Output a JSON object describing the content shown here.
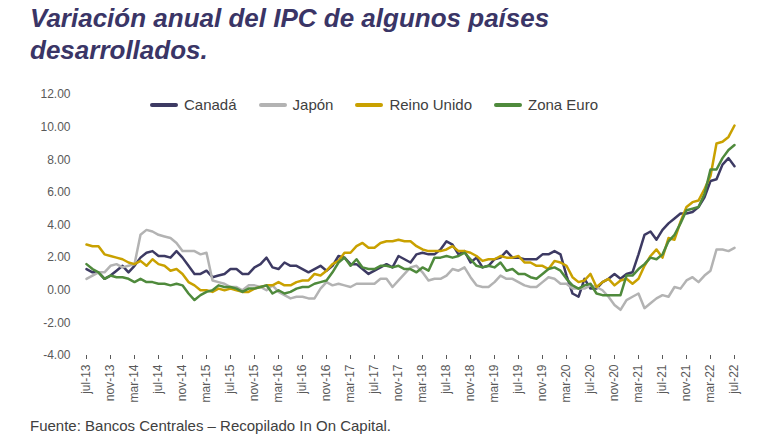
{
  "chart_data": {
    "type": "line",
    "title": "Variación anual del IPC de algunos países desarrollados.",
    "caption": "Fuente: Bancos Centrales – Recopilado In On Capital.",
    "categories": [
      "jul-13",
      null,
      null,
      null,
      "nov-13",
      null,
      null,
      null,
      "mar-14",
      null,
      null,
      null,
      "jul-14",
      null,
      null,
      null,
      "nov-14",
      null,
      null,
      null,
      "mar-15",
      null,
      null,
      null,
      "jul-15",
      null,
      null,
      null,
      "nov-15",
      null,
      null,
      null,
      "mar-16",
      null,
      null,
      null,
      "jul-16",
      null,
      null,
      null,
      "nov-16",
      null,
      null,
      null,
      "mar-17",
      null,
      null,
      null,
      "jul-17",
      null,
      null,
      null,
      "nov-17",
      null,
      null,
      null,
      "mar-18",
      null,
      null,
      null,
      "jul-18",
      null,
      null,
      null,
      "nov-18",
      null,
      null,
      null,
      "mar-19",
      null,
      null,
      null,
      "jul-19",
      null,
      null,
      null,
      "nov-19",
      null,
      null,
      null,
      "mar-20",
      null,
      null,
      null,
      "jul-20",
      null,
      null,
      null,
      "nov-20",
      null,
      null,
      null,
      "mar-21",
      null,
      null,
      null,
      "jul-21",
      null,
      null,
      null,
      "nov-21",
      null,
      null,
      null,
      "mar-22",
      null,
      null,
      null,
      "jul-22"
    ],
    "series": [
      {
        "name": "Canadá",
        "color": "#3d3a63",
        "values": [
          1.3,
          1.1,
          1.1,
          0.7,
          0.9,
          1.2,
          1.5,
          1.1,
          1.5,
          2.0,
          2.3,
          2.4,
          2.1,
          2.1,
          2.0,
          2.4,
          2.0,
          1.5,
          1.0,
          1.0,
          1.2,
          0.8,
          0.9,
          1.0,
          1.3,
          1.3,
          1.0,
          1.0,
          1.4,
          1.6,
          2.0,
          1.4,
          1.3,
          1.7,
          1.5,
          1.5,
          1.3,
          1.1,
          1.3,
          1.5,
          1.2,
          1.5,
          2.1,
          2.0,
          1.6,
          1.6,
          1.3,
          1.0,
          1.2,
          1.4,
          1.6,
          1.4,
          2.1,
          1.9,
          1.7,
          2.2,
          2.3,
          2.2,
          2.2,
          2.5,
          3.0,
          2.8,
          2.2,
          2.4,
          1.7,
          2.0,
          1.4,
          1.5,
          1.9,
          2.0,
          2.4,
          2.0,
          2.0,
          1.9,
          1.9,
          1.9,
          2.2,
          2.2,
          2.4,
          2.2,
          0.9,
          -0.2,
          -0.4,
          0.7,
          0.1,
          0.1,
          0.5,
          0.7,
          1.0,
          0.7,
          1.0,
          1.1,
          2.2,
          3.4,
          3.6,
          3.1,
          3.7,
          4.1,
          4.4,
          4.7,
          4.7,
          4.8,
          5.1,
          5.7,
          6.7,
          6.8,
          7.7,
          8.1,
          7.6
        ]
      },
      {
        "name": "Japón",
        "color": "#b3b3b3",
        "values": [
          0.7,
          0.9,
          1.1,
          1.1,
          1.5,
          1.6,
          1.4,
          1.5,
          1.6,
          3.4,
          3.7,
          3.6,
          3.4,
          3.3,
          3.2,
          2.9,
          2.4,
          2.4,
          2.4,
          2.2,
          2.3,
          0.6,
          0.5,
          0.4,
          0.2,
          0.2,
          0.0,
          0.3,
          0.3,
          0.2,
          0.0,
          0.3,
          -0.1,
          -0.3,
          -0.5,
          -0.4,
          -0.4,
          -0.5,
          -0.5,
          0.1,
          0.5,
          0.3,
          0.4,
          0.3,
          0.2,
          0.4,
          0.4,
          0.4,
          0.4,
          0.7,
          0.7,
          0.2,
          0.6,
          1.0,
          1.4,
          1.5,
          1.1,
          0.6,
          0.7,
          0.7,
          0.9,
          1.3,
          1.2,
          1.4,
          0.8,
          0.3,
          0.2,
          0.2,
          0.5,
          0.9,
          0.7,
          0.7,
          0.5,
          0.3,
          0.2,
          0.2,
          0.5,
          0.8,
          0.7,
          0.4,
          0.4,
          0.1,
          0.1,
          0.1,
          0.3,
          0.2,
          0.0,
          -0.4,
          -0.9,
          -1.2,
          -0.6,
          -0.4,
          -0.2,
          -1.1,
          -0.8,
          -0.5,
          -0.3,
          -0.4,
          0.2,
          0.1,
          0.6,
          0.8,
          0.5,
          0.9,
          1.2,
          2.5,
          2.5,
          2.4,
          2.6
        ]
      },
      {
        "name": "Reino Unido",
        "color": "#c9a100",
        "values": [
          2.8,
          2.7,
          2.7,
          2.2,
          2.1,
          2.0,
          1.9,
          1.7,
          1.6,
          1.8,
          1.5,
          1.9,
          1.6,
          1.5,
          1.2,
          1.3,
          1.0,
          0.5,
          0.3,
          0.0,
          0.0,
          -0.1,
          0.1,
          0.0,
          0.1,
          0.0,
          -0.1,
          -0.1,
          0.1,
          0.2,
          0.3,
          0.3,
          0.5,
          0.3,
          0.3,
          0.5,
          0.6,
          0.6,
          1.0,
          0.9,
          1.2,
          1.6,
          1.8,
          2.3,
          2.3,
          2.7,
          2.9,
          2.6,
          2.6,
          2.9,
          3.0,
          3.0,
          3.1,
          3.0,
          3.0,
          2.7,
          2.5,
          2.4,
          2.4,
          2.4,
          2.5,
          2.7,
          2.4,
          2.4,
          2.3,
          2.1,
          1.8,
          1.9,
          1.9,
          2.1,
          2.0,
          2.0,
          2.1,
          1.7,
          1.7,
          1.5,
          1.5,
          1.3,
          1.8,
          1.7,
          1.5,
          0.8,
          0.5,
          0.6,
          1.0,
          0.2,
          0.5,
          0.7,
          0.3,
          0.6,
          0.7,
          0.4,
          0.7,
          1.5,
          2.1,
          2.5,
          2.0,
          3.2,
          3.1,
          4.2,
          5.1,
          5.4,
          5.5,
          6.2,
          7.0,
          9.0,
          9.1,
          9.4,
          10.1
        ]
      },
      {
        "name": "Zona Euro",
        "color": "#4f8a3c",
        "values": [
          1.6,
          1.3,
          1.1,
          0.7,
          0.9,
          0.8,
          0.8,
          0.7,
          0.5,
          0.7,
          0.5,
          0.5,
          0.4,
          0.4,
          0.3,
          0.4,
          0.3,
          -0.2,
          -0.6,
          -0.3,
          -0.1,
          0.0,
          0.3,
          0.2,
          0.2,
          0.1,
          -0.1,
          0.1,
          0.1,
          0.2,
          0.3,
          -0.2,
          0.0,
          -0.2,
          -0.1,
          0.1,
          0.2,
          0.2,
          0.4,
          0.5,
          0.6,
          1.1,
          1.7,
          2.0,
          1.5,
          1.9,
          1.4,
          1.3,
          1.3,
          1.5,
          1.5,
          1.4,
          1.5,
          1.3,
          1.3,
          1.1,
          1.4,
          1.2,
          2.0,
          2.0,
          2.1,
          2.0,
          2.1,
          2.3,
          1.9,
          1.5,
          1.4,
          1.5,
          1.4,
          1.7,
          1.2,
          1.3,
          1.0,
          1.0,
          0.8,
          0.7,
          1.0,
          1.3,
          1.4,
          1.2,
          0.7,
          0.3,
          0.1,
          0.3,
          0.4,
          -0.2,
          -0.3,
          -0.3,
          -0.3,
          -0.3,
          0.9,
          0.9,
          1.3,
          1.6,
          2.0,
          1.9,
          2.2,
          3.0,
          3.4,
          4.1,
          4.9,
          5.0,
          5.1,
          5.9,
          7.4,
          7.4,
          8.1,
          8.6,
          8.9
        ]
      }
    ],
    "ylim": [
      -4,
      12
    ],
    "yticks": [
      {
        "value": -4,
        "label": "-4.00"
      },
      {
        "value": -2,
        "label": "-2.00"
      },
      {
        "value": 0,
        "label": "0.00"
      },
      {
        "value": 2,
        "label": "2.00"
      },
      {
        "value": 4,
        "label": "4.00"
      },
      {
        "value": 6,
        "label": "6.00"
      },
      {
        "value": 8,
        "label": "8.00"
      },
      {
        "value": 10,
        "label": "10.00"
      },
      {
        "value": 12,
        "label": "12.00"
      }
    ],
    "grid": false,
    "legend": "top"
  }
}
